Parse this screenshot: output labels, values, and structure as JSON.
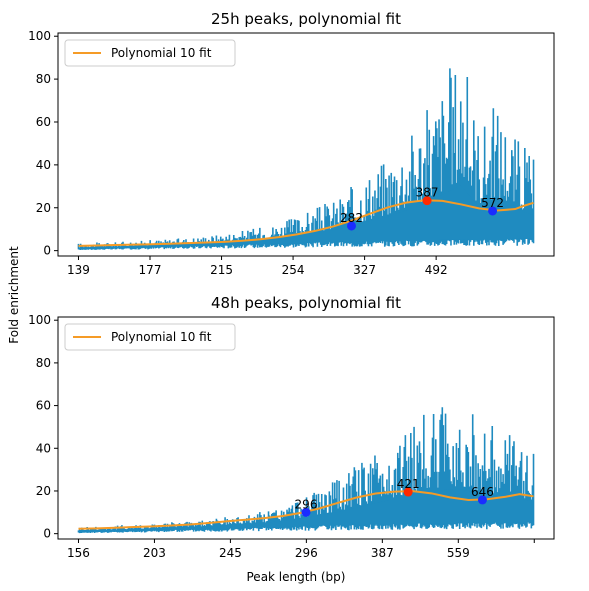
{
  "figure": {
    "ylabel": "Fold enrichment",
    "xlabel": "Peak length (bp)"
  },
  "colors": {
    "series": "#1f8bc0",
    "fit": "#f59b26",
    "max_point": "#ff2a00",
    "min_point": "#1a2cff"
  },
  "chart_data": [
    {
      "type": "line",
      "title": "25h peaks, polynomial fit",
      "legend": {
        "label": "Polynomial 10 fit",
        "position": "top-left"
      },
      "ylim": [
        0,
        100
      ],
      "yticks": [
        0,
        20,
        40,
        60,
        80,
        100
      ],
      "xticks": [
        "139",
        "177",
        "215",
        "254",
        "327",
        "492"
      ],
      "xtick_positions": [
        0.0,
        0.0786,
        0.1572,
        0.2358,
        0.3144,
        0.393
      ],
      "x_range": [
        0.0,
        0.5
      ],
      "fit_curve": [
        [
          0.0,
          2.2
        ],
        [
          0.02,
          2.4
        ],
        [
          0.04,
          2.6
        ],
        [
          0.06,
          2.8
        ],
        [
          0.08,
          3.0
        ],
        [
          0.1,
          3.2
        ],
        [
          0.12,
          3.5
        ],
        [
          0.14,
          3.8
        ],
        [
          0.16,
          4.1
        ],
        [
          0.18,
          4.6
        ],
        [
          0.2,
          5.3
        ],
        [
          0.22,
          6.3
        ],
        [
          0.24,
          7.6
        ],
        [
          0.26,
          9.2
        ],
        [
          0.28,
          11.3
        ],
        [
          0.3,
          14.0
        ],
        [
          0.32,
          17.2
        ],
        [
          0.34,
          20.2
        ],
        [
          0.36,
          22.4
        ],
        [
          0.38,
          23.5
        ],
        [
          0.4,
          23.2
        ],
        [
          0.42,
          21.6
        ],
        [
          0.44,
          19.7
        ],
        [
          0.46,
          18.7
        ],
        [
          0.48,
          19.4
        ],
        [
          0.49,
          21.0
        ],
        [
          0.5,
          22.3
        ]
      ],
      "raw_envelope": {
        "min_y": [
          0.6,
          0.8,
          1.0,
          1.2,
          1.5,
          1.8,
          2.0,
          2.2,
          2.5,
          2.8,
          3.0,
          3.2,
          3.5,
          3.8,
          4.0,
          4.2,
          4.5,
          4.5,
          4.8,
          4.8,
          5.0,
          5.0,
          5.2,
          5.2,
          5.5,
          5.5
        ],
        "max_y": [
          3.5,
          3.8,
          4.0,
          4.5,
          5.0,
          5.5,
          6.0,
          7.0,
          8.0,
          9.5,
          11.0,
          13.0,
          16.0,
          20.0,
          24.0,
          30.0,
          38.0,
          45.0,
          55.0,
          65.0,
          80.0,
          96.0,
          60.0,
          70.0,
          55.0,
          45.0
        ]
      },
      "annotations": [
        {
          "label": "282",
          "x": 0.3,
          "y": 11.5,
          "kind": "min"
        },
        {
          "label": "387",
          "x": 0.383,
          "y": 23.3,
          "kind": "max"
        },
        {
          "label": "572",
          "x": 0.455,
          "y": 18.5,
          "kind": "min"
        }
      ]
    },
    {
      "type": "line",
      "title": "48h peaks, polynomial fit",
      "legend": {
        "label": "Polynomial 10 fit",
        "position": "top-left"
      },
      "ylim": [
        0,
        100
      ],
      "yticks": [
        0,
        20,
        40,
        60,
        80,
        100
      ],
      "xticks": [
        "156",
        "203",
        "245",
        "296",
        "387",
        "559",
        ""
      ],
      "xtick_positions": [
        0.0,
        0.0818,
        0.1636,
        0.2454,
        0.3272,
        0.409,
        0.4908
      ],
      "x_range": [
        0.0,
        0.49
      ],
      "fit_curve": [
        [
          0.0,
          2.3
        ],
        [
          0.02,
          2.5
        ],
        [
          0.04,
          2.8
        ],
        [
          0.06,
          3.1
        ],
        [
          0.08,
          3.4
        ],
        [
          0.1,
          3.8
        ],
        [
          0.12,
          4.3
        ],
        [
          0.14,
          5.0
        ],
        [
          0.16,
          5.8
        ],
        [
          0.18,
          6.5
        ],
        [
          0.2,
          7.3
        ],
        [
          0.22,
          8.3
        ],
        [
          0.24,
          9.8
        ],
        [
          0.26,
          11.9
        ],
        [
          0.28,
          14.5
        ],
        [
          0.3,
          17.0
        ],
        [
          0.32,
          18.8
        ],
        [
          0.34,
          19.7
        ],
        [
          0.36,
          19.9
        ],
        [
          0.38,
          18.9
        ],
        [
          0.4,
          17.0
        ],
        [
          0.42,
          15.8
        ],
        [
          0.44,
          16.1
        ],
        [
          0.46,
          17.3
        ],
        [
          0.475,
          18.5
        ],
        [
          0.49,
          17.5
        ]
      ],
      "raw_envelope": {
        "min_y": [
          0.6,
          0.8,
          1.0,
          1.2,
          1.5,
          1.8,
          2.0,
          2.2,
          2.5,
          2.8,
          3.0,
          3.2,
          3.5,
          3.8,
          4.0,
          4.2,
          4.5,
          4.5,
          4.8,
          4.8,
          5.0,
          5.0,
          5.2,
          5.2,
          5.5
        ],
        "max_y": [
          3.5,
          3.8,
          4.0,
          4.5,
          5.0,
          5.5,
          6.0,
          7.0,
          8.0,
          9.5,
          11.0,
          14.0,
          18.0,
          22.0,
          28.0,
          35.0,
          42.0,
          48.0,
          55.0,
          60.0,
          62.0,
          56.0,
          50.0,
          45.0,
          40.0
        ]
      },
      "annotations": [
        {
          "label": "296",
          "x": 0.245,
          "y": 10.0,
          "kind": "min"
        },
        {
          "label": "421",
          "x": 0.355,
          "y": 19.5,
          "kind": "max"
        },
        {
          "label": "646",
          "x": 0.435,
          "y": 15.8,
          "kind": "min"
        }
      ]
    }
  ]
}
